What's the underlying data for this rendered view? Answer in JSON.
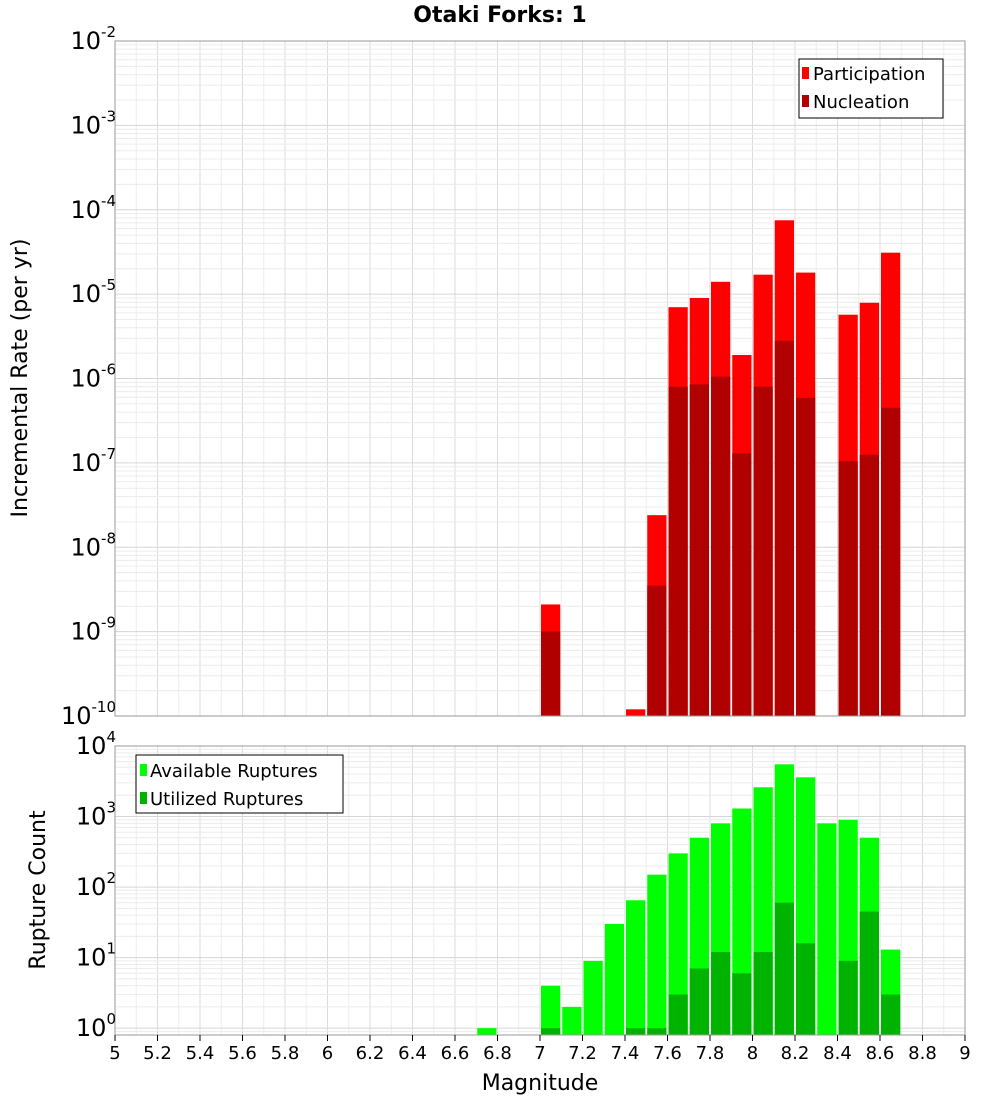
{
  "chart_data": [
    {
      "type": "bar",
      "title": "Otaki Forks: 1",
      "ylabel": "Incremental Rate (per yr)",
      "xlabel": "",
      "xlim": [
        5,
        9
      ],
      "ylim": [
        1e-10,
        0.01
      ],
      "yscale": "log",
      "ytick_exponents": [
        "-10",
        "-9",
        "-8",
        "-7",
        "-6",
        "-5",
        "-4",
        "-3",
        "-2"
      ],
      "ytick_base": "10",
      "grid": true,
      "legend_position": "top-right",
      "bar_width": 0.1,
      "series": [
        {
          "name": "Participation",
          "color": "#ff0000",
          "x": [
            7.05,
            7.45,
            7.55,
            7.65,
            7.75,
            7.85,
            7.95,
            8.05,
            8.15,
            8.25,
            8.45,
            8.55,
            8.65
          ],
          "values": [
            2.1e-09,
            1.2e-10,
            2.4e-08,
            7e-06,
            9e-06,
            1.4e-05,
            1.9e-06,
            1.7e-05,
            7.5e-05,
            1.8e-05,
            5.7e-06,
            7.9e-06,
            3.1e-05
          ]
        },
        {
          "name": "Nucleation",
          "color": "#b00000",
          "x": [
            7.05,
            7.55,
            7.65,
            7.75,
            7.85,
            7.95,
            8.05,
            8.15,
            8.25,
            8.45,
            8.55,
            8.65
          ],
          "values": [
            1e-09,
            3.5e-09,
            8e-07,
            8.5e-07,
            1.05e-06,
            1.3e-07,
            8e-07,
            2.8e-06,
            5.9e-07,
            1.05e-07,
            1.25e-07,
            4.5e-07
          ]
        }
      ]
    },
    {
      "type": "bar",
      "title": "",
      "ylabel": "Rupture Count",
      "xlabel": "Magnitude",
      "xlim": [
        5,
        9
      ],
      "ylim": [
        0.8,
        10000
      ],
      "yscale": "log",
      "ytick_exponents": [
        "0",
        "1",
        "2",
        "3",
        "4"
      ],
      "ytick_base": "10",
      "xticks": [
        "5",
        "5.2",
        "5.4",
        "5.6",
        "5.8",
        "6",
        "6.2",
        "6.4",
        "6.6",
        "6.8",
        "7",
        "7.2",
        "7.4",
        "7.6",
        "7.8",
        "8",
        "8.2",
        "8.4",
        "8.6",
        "8.8",
        "9"
      ],
      "grid": true,
      "legend_position": "top-left",
      "bar_width": 0.1,
      "series": [
        {
          "name": "Available Ruptures",
          "color": "#00ff00",
          "x": [
            6.75,
            7.05,
            7.15,
            7.25,
            7.35,
            7.45,
            7.55,
            7.65,
            7.75,
            7.85,
            7.95,
            8.05,
            8.15,
            8.25,
            8.35,
            8.45,
            8.55,
            8.65
          ],
          "values": [
            1,
            4,
            2,
            9,
            30,
            65,
            150,
            300,
            500,
            800,
            1300,
            2600,
            5500,
            3600,
            800,
            900,
            500,
            13
          ]
        },
        {
          "name": "Utilized Ruptures",
          "color": "#00b300",
          "x": [
            7.05,
            7.45,
            7.55,
            7.65,
            7.75,
            7.85,
            7.95,
            8.05,
            8.15,
            8.25,
            8.45,
            8.55,
            8.65
          ],
          "values": [
            1,
            1,
            1,
            3,
            7,
            12,
            6,
            12,
            60,
            16,
            9,
            45,
            3
          ]
        }
      ]
    }
  ]
}
